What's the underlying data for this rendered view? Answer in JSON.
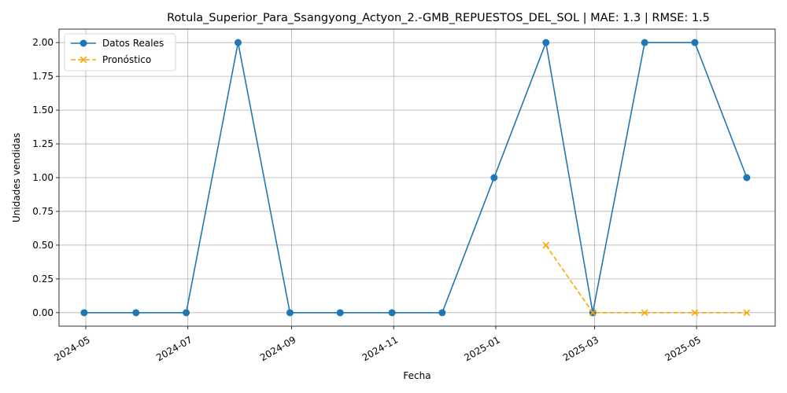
{
  "chart_data": {
    "type": "line",
    "title": "Rotula_Superior_Para_Ssangyong_Actyon_2.-GMB_REPUESTOS_DEL_SOL | MAE: 1.3 | RMSE: 1.5",
    "xlabel": "Fecha",
    "ylabel": "Unidades vendidas",
    "x_ticks": [
      "2024-05",
      "2024-07",
      "2024-09",
      "2024-11",
      "2025-01",
      "2025-03",
      "2025-05"
    ],
    "y_ticks": [
      "0.00",
      "0.25",
      "0.50",
      "0.75",
      "1.00",
      "1.25",
      "1.50",
      "1.75",
      "2.00"
    ],
    "xlim": [
      "2024-04-15",
      "2025-06-17"
    ],
    "ylim": [
      -0.1,
      2.1
    ],
    "grid": true,
    "legend_position": "top-left",
    "series": [
      {
        "name": "Datos Reales",
        "color": "#1f77b4",
        "style": "solid",
        "marker": "circle",
        "points": [
          {
            "x": "2024-04-30",
            "y": 0
          },
          {
            "x": "2024-05-31",
            "y": 0
          },
          {
            "x": "2024-06-30",
            "y": 0
          },
          {
            "x": "2024-07-31",
            "y": 2
          },
          {
            "x": "2024-08-31",
            "y": 0
          },
          {
            "x": "2024-09-30",
            "y": 0
          },
          {
            "x": "2024-10-31",
            "y": 0
          },
          {
            "x": "2024-11-30",
            "y": 0
          },
          {
            "x": "2024-12-31",
            "y": 1
          },
          {
            "x": "2025-01-31",
            "y": 2
          },
          {
            "x": "2025-02-28",
            "y": 0
          },
          {
            "x": "2025-03-31",
            "y": 2
          },
          {
            "x": "2025-04-30",
            "y": 2
          },
          {
            "x": "2025-05-31",
            "y": 1
          }
        ]
      },
      {
        "name": "Pronóstico",
        "color": "#ffa500",
        "style": "dashed",
        "marker": "x",
        "points": [
          {
            "x": "2025-01-31",
            "y": 0.5
          },
          {
            "x": "2025-02-28",
            "y": 0
          },
          {
            "x": "2025-03-31",
            "y": 0
          },
          {
            "x": "2025-04-30",
            "y": 0
          },
          {
            "x": "2025-05-31",
            "y": 0
          }
        ]
      }
    ]
  }
}
